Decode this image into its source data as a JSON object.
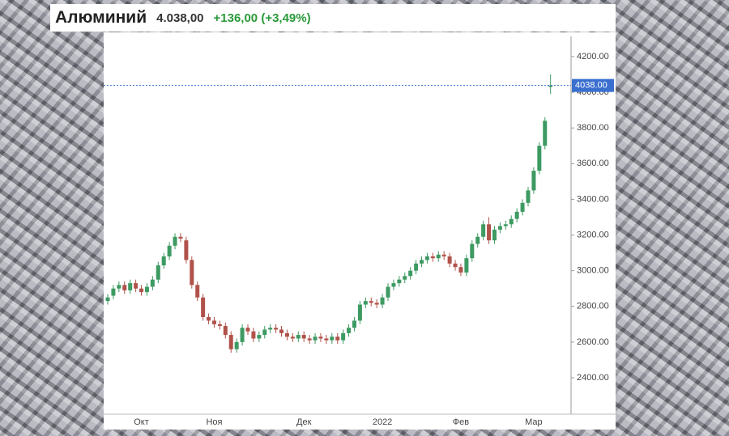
{
  "header": {
    "title": "Алюминий",
    "price": "4.038,00",
    "change": "+136,00 (+3,49%)"
  },
  "chart_data": {
    "type": "candlestick",
    "categories": [
      null,
      null,
      null,
      null,
      null,
      null,
      "Окт",
      null,
      null,
      null,
      null,
      null,
      null,
      null,
      null,
      null,
      null,
      null,
      null,
      "Ноя",
      null,
      null,
      null,
      null,
      null,
      null,
      null,
      null,
      null,
      null,
      null,
      null,
      null,
      null,
      null,
      "Дек",
      null,
      null,
      null,
      null,
      null,
      null,
      null,
      null,
      null,
      null,
      null,
      null,
      null,
      "2022",
      null,
      null,
      null,
      null,
      null,
      null,
      null,
      null,
      null,
      null,
      null,
      null,
      null,
      "Фев",
      null,
      null,
      null,
      null,
      null,
      null,
      null,
      null,
      null,
      null,
      null,
      null,
      "Мар",
      null,
      null,
      null
    ],
    "open": [
      2830,
      2860,
      2900,
      2920,
      2890,
      2930,
      2900,
      2880,
      2910,
      2950,
      3030,
      3080,
      3140,
      3190,
      3170,
      3060,
      2920,
      2850,
      2740,
      2720,
      2700,
      2690,
      2640,
      2560,
      2600,
      2680,
      2660,
      2620,
      2640,
      2670,
      2680,
      2670,
      2650,
      2630,
      2620,
      2640,
      2620,
      2610,
      2630,
      2620,
      2610,
      2630,
      2610,
      2650,
      2680,
      2720,
      2810,
      2830,
      2820,
      2810,
      2850,
      2910,
      2930,
      2950,
      2970,
      3000,
      3040,
      3060,
      3080,
      3070,
      3090,
      3080,
      3040,
      3020,
      2990,
      3070,
      3150,
      3190,
      3260,
      3170,
      3230,
      3250,
      3260,
      3290,
      3330,
      3380,
      3450,
      3560,
      3700,
      4030
    ],
    "high": [
      2870,
      2920,
      2940,
      2940,
      2950,
      2950,
      2920,
      2930,
      2970,
      3050,
      3100,
      3160,
      3210,
      3210,
      3190,
      3080,
      2940,
      2870,
      2760,
      2740,
      2720,
      2710,
      2660,
      2620,
      2700,
      2700,
      2680,
      2660,
      2690,
      2700,
      2700,
      2690,
      2670,
      2650,
      2660,
      2660,
      2640,
      2650,
      2650,
      2640,
      2650,
      2650,
      2670,
      2700,
      2740,
      2830,
      2850,
      2850,
      2840,
      2870,
      2930,
      2950,
      2970,
      2990,
      3020,
      3060,
      3080,
      3100,
      3100,
      3110,
      3110,
      3100,
      3060,
      3040,
      3090,
      3170,
      3210,
      3280,
      3300,
      3250,
      3270,
      3280,
      3310,
      3350,
      3400,
      3470,
      3580,
      3720,
      3860,
      4100
    ],
    "low": [
      2810,
      2840,
      2880,
      2870,
      2870,
      2880,
      2860,
      2860,
      2890,
      2930,
      3010,
      3060,
      3120,
      3160,
      3040,
      2900,
      2830,
      2720,
      2700,
      2680,
      2670,
      2620,
      2540,
      2540,
      2580,
      2640,
      2600,
      2600,
      2620,
      2650,
      2650,
      2630,
      2610,
      2600,
      2600,
      2600,
      2590,
      2590,
      2600,
      2590,
      2590,
      2590,
      2590,
      2630,
      2660,
      2700,
      2790,
      2800,
      2790,
      2790,
      2830,
      2890,
      2910,
      2930,
      2950,
      2980,
      3020,
      3040,
      3050,
      3050,
      3060,
      3020,
      3000,
      2970,
      2970,
      3050,
      3130,
      3170,
      3150,
      3150,
      3210,
      3230,
      3240,
      3270,
      3310,
      3360,
      3430,
      3540,
      3680,
      3990
    ],
    "close": [
      2850,
      2900,
      2920,
      2890,
      2930,
      2900,
      2880,
      2910,
      2950,
      3030,
      3080,
      3140,
      3190,
      3180,
      3060,
      2920,
      2850,
      2740,
      2720,
      2700,
      2690,
      2640,
      2560,
      2600,
      2680,
      2660,
      2620,
      2640,
      2670,
      2680,
      2670,
      2650,
      2630,
      2620,
      2640,
      2620,
      2610,
      2630,
      2620,
      2610,
      2630,
      2610,
      2650,
      2680,
      2720,
      2810,
      2830,
      2820,
      2810,
      2850,
      2910,
      2930,
      2950,
      2970,
      3000,
      3040,
      3060,
      3080,
      3070,
      3090,
      3080,
      3040,
      3020,
      2990,
      3070,
      3150,
      3190,
      3260,
      3170,
      3230,
      3250,
      3260,
      3290,
      3330,
      3380,
      3450,
      3560,
      3700,
      3840,
      4038
    ],
    "up_color": "#3d9a62",
    "down_color": "#b0524a",
    "ylim": [
      2196,
      4313
    ],
    "yticks": [
      {
        "value": 2400,
        "label": "2400.00"
      },
      {
        "value": 2600,
        "label": "2600.00"
      },
      {
        "value": 2800,
        "label": "2800.00"
      },
      {
        "value": 3000,
        "label": "3000.00"
      },
      {
        "value": 3200,
        "label": "3200.00"
      },
      {
        "value": 3400,
        "label": "3400.00"
      },
      {
        "value": 3600,
        "label": "3600.00"
      },
      {
        "value": 3800,
        "label": "3800.00"
      },
      {
        "value": 4000,
        "label": "4000.00"
      },
      {
        "value": 4200,
        "label": "4200.00"
      }
    ],
    "price_line": {
      "value": 4038,
      "label": "4038.00",
      "color": "#3a6fd0"
    }
  }
}
